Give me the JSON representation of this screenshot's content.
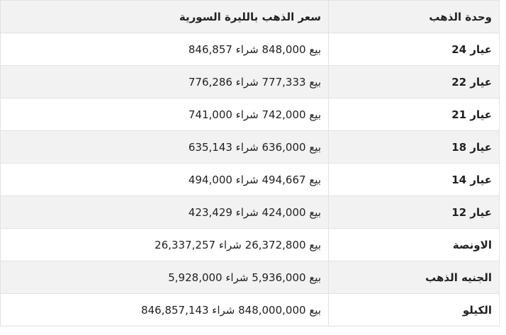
{
  "table": {
    "header": [
      "وحدة الذهب",
      "سعر الذهب بالليرة السورية"
    ],
    "rows": [
      [
        "عيار 24",
        "بيع 848,000 شراء 846,857"
      ],
      [
        "عيار 22",
        "بيع 777,333 شراء 776,286"
      ],
      [
        "عيار 21",
        "بيع 742,000 شراء 741,000"
      ],
      [
        "عيار 18",
        "بيع 636,000 شراء 635,143"
      ],
      [
        "عيار 14",
        "بيع 494,667 شراء 494,000"
      ],
      [
        "عيار 12",
        "بيع 424,000 شراء 423,429"
      ],
      [
        "الاونصة",
        "بيع 26,372,800 شراء 26,337,257"
      ],
      [
        "الجنيه الذهب",
        "بيع 5,936,000 شراء 5,928,000"
      ],
      [
        "الكيلو",
        "بيع 848,000,000 شراء 846,857,143"
      ]
    ]
  }
}
